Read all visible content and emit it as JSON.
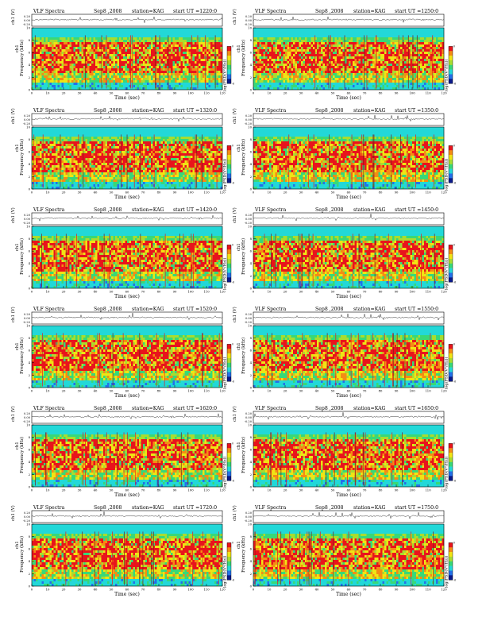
{
  "chart_data": [
    {
      "type": "heatmap",
      "title": "VLF Spectra",
      "date": "Sep8 ,2008",
      "station": "station=KAG",
      "start": "start UT =1220:0",
      "xlabel": "Time (sec)",
      "ylabel": "Frequency (kHz)",
      "ylabel_top": "ch1 (V)",
      "ylabel_side": "ch1",
      "colorbar_label": "log(PSD(V²/Hz))",
      "xlim": [
        0,
        120
      ],
      "ylim": [
        0,
        10
      ],
      "xticks": [
        "0",
        "10",
        "20",
        "30",
        "40",
        "50",
        "60",
        "70",
        "80",
        "90",
        "100",
        "110",
        "120"
      ],
      "yticks": [
        "0",
        "2",
        "4",
        "6",
        "8",
        "10"
      ],
      "wave_ticks": [
        "0.20",
        "0.00",
        "-0.20"
      ],
      "cb_ticks": [
        "0",
        "-1",
        "-2",
        "-3",
        "-4",
        "-5",
        "-6"
      ]
    },
    {
      "type": "heatmap",
      "title": "VLF Spectra",
      "date": "Sep8 ,2008",
      "station": "station=KAG",
      "start": "start UT =1250:0",
      "xlabel": "Time (sec)",
      "ylabel": "Frequency (kHz)",
      "ylabel_top": "ch1 (V)",
      "ylabel_side": "ch1",
      "colorbar_label": "log(PSD(V²/Hz))",
      "xlim": [
        0,
        120
      ],
      "ylim": [
        0,
        10
      ],
      "xticks": [
        "0",
        "10",
        "20",
        "30",
        "40",
        "50",
        "60",
        "70",
        "80",
        "90",
        "100",
        "110",
        "120"
      ],
      "yticks": [
        "0",
        "2",
        "4",
        "6",
        "8",
        "10"
      ],
      "wave_ticks": [
        "0.20",
        "0.00",
        "-0.20"
      ],
      "cb_ticks": [
        "0",
        "-1",
        "-2",
        "-3",
        "-4",
        "-5",
        "-6"
      ]
    },
    {
      "type": "heatmap",
      "title": "VLF Spectra",
      "date": "Sep8 ,2008",
      "station": "station=KAG",
      "start": "start UT =1320:0",
      "xlabel": "Time (sec)",
      "ylabel": "Frequency (kHz)",
      "ylabel_top": "ch1 (V)",
      "ylabel_side": "ch1",
      "colorbar_label": "log(PSD(V²/Hz))",
      "xlim": [
        0,
        120
      ],
      "ylim": [
        0,
        10
      ],
      "xticks": [
        "0",
        "10",
        "20",
        "30",
        "40",
        "50",
        "60",
        "70",
        "80",
        "90",
        "100",
        "110",
        "120"
      ],
      "yticks": [
        "0",
        "2",
        "4",
        "6",
        "8",
        "10"
      ],
      "wave_ticks": [
        "0.20",
        "0.00",
        "-0.20"
      ],
      "cb_ticks": [
        "0",
        "-1",
        "-2",
        "-3",
        "-4",
        "-5",
        "-6"
      ]
    },
    {
      "type": "heatmap",
      "title": "VLF Spectra",
      "date": "Sep8 ,2008",
      "station": "station=KAG",
      "start": "start UT =1350:0",
      "xlabel": "Time (sec)",
      "ylabel": "Frequency (kHz)",
      "ylabel_top": "ch1 (V)",
      "ylabel_side": "ch1",
      "colorbar_label": "log(PSD(V²/Hz))",
      "xlim": [
        0,
        120
      ],
      "ylim": [
        0,
        10
      ],
      "xticks": [
        "0",
        "10",
        "20",
        "30",
        "40",
        "50",
        "60",
        "70",
        "80",
        "90",
        "100",
        "110",
        "120"
      ],
      "yticks": [
        "0",
        "2",
        "4",
        "6",
        "8",
        "10"
      ],
      "wave_ticks": [
        "0.20",
        "0.00",
        "-0.20"
      ],
      "cb_ticks": [
        "0",
        "-1",
        "-2",
        "-3",
        "-4",
        "-5",
        "-6"
      ]
    },
    {
      "type": "heatmap",
      "title": "VLF Spectra",
      "date": "Sep8 ,2008",
      "station": "station=KAG",
      "start": "start UT =1420:0",
      "xlabel": "Time (sec)",
      "ylabel": "Frequency (kHz)",
      "ylabel_top": "ch1 (V)",
      "ylabel_side": "ch1",
      "colorbar_label": "log(PSD(V²/Hz))",
      "xlim": [
        0,
        120
      ],
      "ylim": [
        0,
        10
      ],
      "xticks": [
        "0",
        "10",
        "20",
        "30",
        "40",
        "50",
        "60",
        "70",
        "80",
        "90",
        "100",
        "110",
        "120"
      ],
      "yticks": [
        "0",
        "2",
        "4",
        "6",
        "8",
        "10"
      ],
      "wave_ticks": [
        "0.20",
        "0.00",
        "-0.20"
      ],
      "cb_ticks": [
        "0",
        "-1",
        "-2",
        "-3",
        "-4",
        "-5",
        "-6"
      ]
    },
    {
      "type": "heatmap",
      "title": "VLF Spectra",
      "date": "Sep8 ,2008",
      "station": "station=KAG",
      "start": "start UT =1450:0",
      "xlabel": "Time (sec)",
      "ylabel": "Frequency (kHz)",
      "ylabel_top": "ch1 (V)",
      "ylabel_side": "ch1",
      "colorbar_label": "log(PSD(V²/Hz))",
      "xlim": [
        0,
        120
      ],
      "ylim": [
        0,
        10
      ],
      "xticks": [
        "0",
        "10",
        "20",
        "30",
        "40",
        "50",
        "60",
        "70",
        "80",
        "90",
        "100",
        "110",
        "120"
      ],
      "yticks": [
        "0",
        "2",
        "4",
        "6",
        "8",
        "10"
      ],
      "wave_ticks": [
        "0.20",
        "0.00",
        "-0.20"
      ],
      "cb_ticks": [
        "0",
        "-1",
        "-2",
        "-3",
        "-4",
        "-5",
        "-6"
      ]
    },
    {
      "type": "heatmap",
      "title": "VLF Spectra",
      "date": "Sep8 ,2008",
      "station": "station=KAG",
      "start": "start UT =1520:0",
      "xlabel": "Time (sec)",
      "ylabel": "Frequency (kHz)",
      "ylabel_top": "ch1 (V)",
      "ylabel_side": "ch1",
      "colorbar_label": "log(PSD(V²/Hz))",
      "xlim": [
        0,
        120
      ],
      "ylim": [
        0,
        10
      ],
      "xticks": [
        "0",
        "10",
        "20",
        "30",
        "40",
        "50",
        "60",
        "70",
        "80",
        "90",
        "100",
        "110",
        "120"
      ],
      "yticks": [
        "0",
        "2",
        "4",
        "6",
        "8",
        "10"
      ],
      "wave_ticks": [
        "0.20",
        "0.00",
        "-0.20"
      ],
      "cb_ticks": [
        "0",
        "-1",
        "-2",
        "-3",
        "-4",
        "-5",
        "-6"
      ]
    },
    {
      "type": "heatmap",
      "title": "VLF Spectra",
      "date": "Sep8 ,2008",
      "station": "station=KAG",
      "start": "start UT =1550:0",
      "xlabel": "Time (sec)",
      "ylabel": "Frequency (kHz)",
      "ylabel_top": "ch1 (V)",
      "ylabel_side": "ch1",
      "colorbar_label": "log(PSD(V²/Hz))",
      "xlim": [
        0,
        120
      ],
      "ylim": [
        0,
        10
      ],
      "xticks": [
        "0",
        "10",
        "20",
        "30",
        "40",
        "50",
        "60",
        "70",
        "80",
        "90",
        "100",
        "110",
        "120"
      ],
      "yticks": [
        "0",
        "2",
        "4",
        "6",
        "8",
        "10"
      ],
      "wave_ticks": [
        "0.20",
        "0.00",
        "-0.20"
      ],
      "cb_ticks": [
        "0",
        "-1",
        "-2",
        "-3",
        "-4",
        "-5",
        "-6"
      ]
    },
    {
      "type": "heatmap",
      "title": "VLF Spectra",
      "date": "Sep8 ,2008",
      "station": "station=KAG",
      "start": "start UT =1620:0",
      "xlabel": "Time (sec)",
      "ylabel": "Frequency (kHz)",
      "ylabel_top": "ch1 (V)",
      "ylabel_side": "ch1",
      "colorbar_label": "log(PSD(V²/Hz))",
      "xlim": [
        0,
        120
      ],
      "ylim": [
        0,
        10
      ],
      "xticks": [
        "0",
        "10",
        "20",
        "30",
        "40",
        "50",
        "60",
        "70",
        "80",
        "90",
        "100",
        "110",
        "120"
      ],
      "yticks": [
        "0",
        "2",
        "4",
        "6",
        "8",
        "10"
      ],
      "wave_ticks": [
        "0.20",
        "0.00",
        "-0.20"
      ],
      "cb_ticks": [
        "0",
        "-1",
        "-2",
        "-3",
        "-4",
        "-5",
        "-6"
      ]
    },
    {
      "type": "heatmap",
      "title": "VLF Spectra",
      "date": "Sep8 ,2008",
      "station": "station=KAG",
      "start": "start UT =1650:0",
      "xlabel": "Time (sec)",
      "ylabel": "Frequency (kHz)",
      "ylabel_top": "ch1 (V)",
      "ylabel_side": "ch1",
      "colorbar_label": "log(PSD(V²/Hz))",
      "xlim": [
        0,
        120
      ],
      "ylim": [
        0,
        10
      ],
      "xticks": [
        "0",
        "10",
        "20",
        "30",
        "40",
        "50",
        "60",
        "70",
        "80",
        "90",
        "100",
        "110",
        "120"
      ],
      "yticks": [
        "0",
        "2",
        "4",
        "6",
        "8",
        "10"
      ],
      "wave_ticks": [
        "0.20",
        "0.00",
        "-0.20"
      ],
      "cb_ticks": [
        "0",
        "-1",
        "-2",
        "-3",
        "-4",
        "-5",
        "-6"
      ]
    },
    {
      "type": "heatmap",
      "title": "VLF Spectra",
      "date": "Sep8 ,2008",
      "station": "station=KAG",
      "start": "start UT =1720:0",
      "xlabel": "Time (sec)",
      "ylabel": "Frequency (kHz)",
      "ylabel_top": "ch1 (V)",
      "ylabel_side": "ch1",
      "colorbar_label": "log(PSD(V²/Hz))",
      "xlim": [
        0,
        120
      ],
      "ylim": [
        0,
        10
      ],
      "xticks": [
        "0",
        "10",
        "20",
        "30",
        "40",
        "50",
        "60",
        "70",
        "80",
        "90",
        "100",
        "110",
        "120"
      ],
      "yticks": [
        "0",
        "2",
        "4",
        "6",
        "8",
        "10"
      ],
      "wave_ticks": [
        "0.20",
        "0.00",
        "-0.20"
      ],
      "cb_ticks": [
        "0",
        "-1",
        "-2",
        "-3",
        "-4",
        "-5",
        "-6"
      ]
    },
    {
      "type": "heatmap",
      "title": "VLF Spectra",
      "date": "Sep8 ,2008",
      "station": "station=KAG",
      "start": "start UT =1750:0",
      "xlabel": "Time (sec)",
      "ylabel": "Frequency (kHz)",
      "ylabel_top": "ch1 (V)",
      "ylabel_side": "ch1",
      "colorbar_label": "log(PSD(V²/Hz))",
      "xlim": [
        0,
        120
      ],
      "ylim": [
        0,
        10
      ],
      "xticks": [
        "0",
        "10",
        "20",
        "30",
        "40",
        "50",
        "60",
        "70",
        "80",
        "90",
        "100",
        "110",
        "120"
      ],
      "yticks": [
        "0",
        "2",
        "4",
        "6",
        "8",
        "10"
      ],
      "wave_ticks": [
        "0.20",
        "0.00",
        "-0.20"
      ],
      "cb_ticks": [
        "0",
        "-1",
        "-2",
        "-3",
        "-4",
        "-5",
        "-6"
      ]
    }
  ],
  "colors": {
    "red": "#e8141c",
    "orange": "#f48c14",
    "yellow": "#f0e414",
    "ygreen": "#a8dc30",
    "green": "#38d878",
    "cyan": "#22d8d8",
    "blue": "#2470e8",
    "navy": "#0a1a8a",
    "wave": "#222222"
  }
}
